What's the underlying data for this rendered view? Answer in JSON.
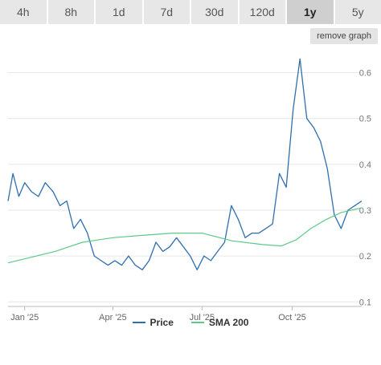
{
  "ranges": {
    "items": [
      "4h",
      "8h",
      "1d",
      "7d",
      "30d",
      "120d",
      "1y",
      "5y"
    ],
    "active": "1y"
  },
  "remove_graph_label": "remove graph",
  "colors": {
    "price": "#2f6fb0",
    "sma": "#5cc98a",
    "grid": "#e6e6e6"
  },
  "chart_data": {
    "type": "line",
    "x_ticks": [
      "Jan '25",
      "Apr '25",
      "Jul '25",
      "Oct '25"
    ],
    "y_ticks": [
      0.1,
      0.2,
      0.3,
      0.4,
      0.5,
      0.6
    ],
    "ylim": [
      0.09,
      0.65
    ],
    "grid": true,
    "legend_position": "bottom",
    "series": [
      {
        "name": "Price",
        "x": [
          "2024-12-15",
          "2024-12-20",
          "2024-12-26",
          "2025-01-01",
          "2025-01-08",
          "2025-01-15",
          "2025-01-22",
          "2025-01-30",
          "2025-02-06",
          "2025-02-13",
          "2025-02-20",
          "2025-02-27",
          "2025-03-06",
          "2025-03-13",
          "2025-03-20",
          "2025-03-27",
          "2025-04-03",
          "2025-04-10",
          "2025-04-17",
          "2025-04-24",
          "2025-05-01",
          "2025-05-08",
          "2025-05-15",
          "2025-05-22",
          "2025-05-29",
          "2025-06-05",
          "2025-06-12",
          "2025-06-19",
          "2025-06-26",
          "2025-07-03",
          "2025-07-10",
          "2025-07-17",
          "2025-07-24",
          "2025-07-31",
          "2025-08-07",
          "2025-08-14",
          "2025-08-21",
          "2025-08-28",
          "2025-09-04",
          "2025-09-11",
          "2025-09-18",
          "2025-09-25",
          "2025-10-02",
          "2025-10-09",
          "2025-10-16",
          "2025-10-23",
          "2025-10-30",
          "2025-11-06",
          "2025-11-13",
          "2025-11-20",
          "2025-11-27",
          "2025-12-04",
          "2025-12-11"
        ],
        "values": [
          0.32,
          0.38,
          0.33,
          0.36,
          0.34,
          0.33,
          0.36,
          0.34,
          0.31,
          0.32,
          0.26,
          0.28,
          0.25,
          0.2,
          0.19,
          0.18,
          0.19,
          0.18,
          0.2,
          0.18,
          0.17,
          0.19,
          0.23,
          0.21,
          0.22,
          0.24,
          0.22,
          0.2,
          0.17,
          0.2,
          0.19,
          0.21,
          0.23,
          0.31,
          0.28,
          0.24,
          0.25,
          0.25,
          0.26,
          0.27,
          0.38,
          0.35,
          0.52,
          0.63,
          0.5,
          0.48,
          0.45,
          0.39,
          0.29,
          0.26,
          0.3,
          0.31,
          0.32
        ]
      },
      {
        "name": "SMA 200",
        "x": [
          "2024-12-15",
          "2025-02-01",
          "2025-03-01",
          "2025-04-01",
          "2025-05-01",
          "2025-06-01",
          "2025-07-01",
          "2025-08-01",
          "2025-09-01",
          "2025-09-20",
          "2025-10-05",
          "2025-10-20",
          "2025-11-05",
          "2025-11-20",
          "2025-12-11"
        ],
        "values": [
          0.185,
          0.21,
          0.23,
          0.24,
          0.245,
          0.25,
          0.25,
          0.233,
          0.225,
          0.222,
          0.235,
          0.26,
          0.28,
          0.295,
          0.305
        ]
      }
    ]
  }
}
